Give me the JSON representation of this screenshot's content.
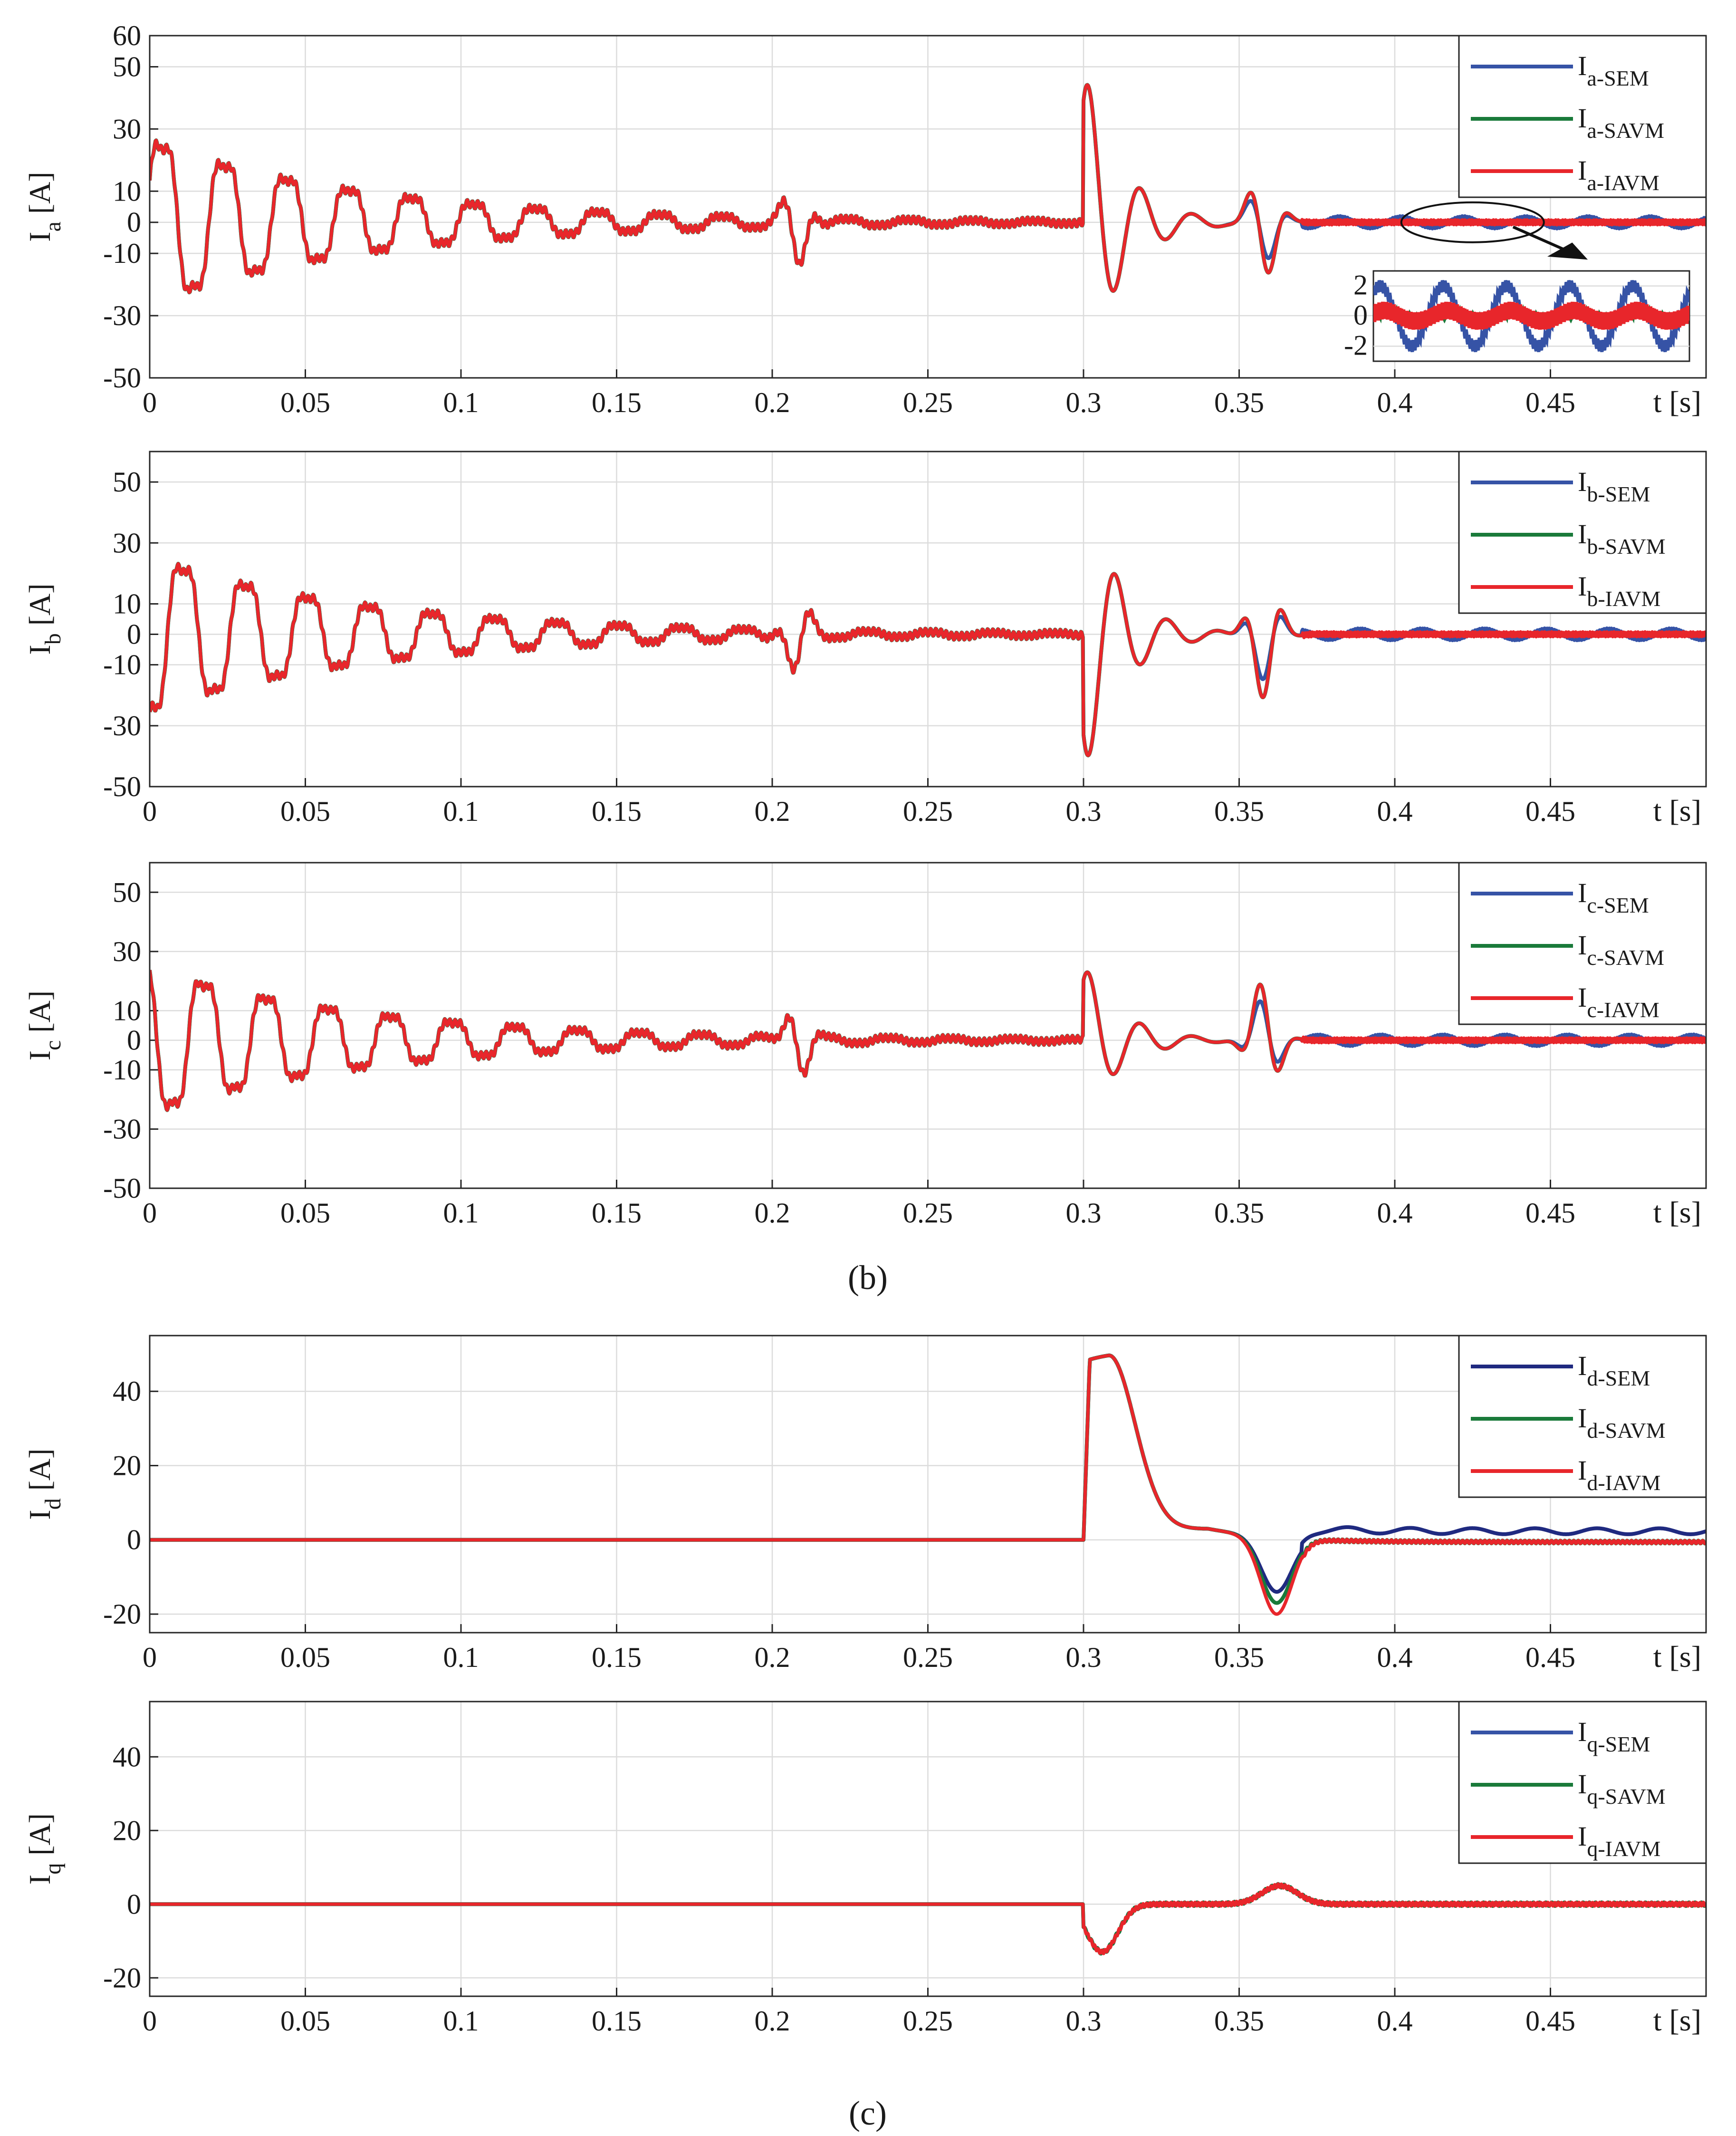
{
  "colors": {
    "SEM_phase": "#3653a6",
    "SEM_dq": "#1f2a80",
    "SAVM": "#1a7a3a",
    "IAVM": "#e8262b"
  },
  "captions": {
    "b": "(b)",
    "c": "(c)"
  },
  "chart_data": [
    {
      "id": "ia",
      "type": "line",
      "ylabel_main": "I",
      "ylabel_sub": "a",
      "ylabel_unit": " [A]",
      "xlabel": "t [s]",
      "xlim": [
        0,
        0.5
      ],
      "ylim": [
        -50,
        60
      ],
      "xticks": [
        0,
        0.05,
        0.1,
        0.15,
        0.2,
        0.25,
        0.3,
        0.35,
        0.4,
        0.45
      ],
      "xticklabels": [
        "0",
        "0.05",
        "0.1",
        "0.15",
        "0.2",
        "0.25",
        "0.3",
        "0.35",
        "0.4",
        "0.45"
      ],
      "yticks": [
        -50,
        -30,
        -10,
        0,
        10,
        30,
        50,
        60
      ],
      "yticklabels": [
        "-50",
        "-30",
        "-10",
        "0",
        "10",
        "30",
        "50",
        "60"
      ],
      "legend_position": "top-right",
      "grid": true,
      "series": [
        {
          "main": "I",
          "sub": "a-SEM",
          "color": "#3653a6"
        },
        {
          "main": "I",
          "sub": "a-SAVM",
          "color": "#1a7a3a"
        },
        {
          "main": "I",
          "sub": "a-IAVM",
          "color": "#e8262b"
        }
      ],
      "inset": {
        "xlim": [
          0.4,
          0.5
        ],
        "ylim": [
          -3,
          3
        ],
        "yticks": [
          -2,
          0,
          2
        ],
        "yticklabels": [
          "-2",
          "0",
          "2"
        ]
      }
    },
    {
      "id": "ib",
      "type": "line",
      "ylabel_main": "I",
      "ylabel_sub": "b",
      "ylabel_unit": " [A]",
      "xlabel": "t [s]",
      "xlim": [
        0,
        0.5
      ],
      "ylim": [
        -50,
        60
      ],
      "xticks": [
        0,
        0.05,
        0.1,
        0.15,
        0.2,
        0.25,
        0.3,
        0.35,
        0.4,
        0.45
      ],
      "xticklabels": [
        "0",
        "0.05",
        "0.1",
        "0.15",
        "0.2",
        "0.25",
        "0.3",
        "0.35",
        "0.4",
        "0.45"
      ],
      "yticks": [
        -50,
        -30,
        -10,
        0,
        10,
        30,
        50
      ],
      "yticklabels": [
        "-50",
        "-30",
        "-10",
        "0",
        "10",
        "30",
        "50"
      ],
      "legend_position": "top-right",
      "grid": true,
      "series": [
        {
          "main": "I",
          "sub": "b-SEM",
          "color": "#3653a6"
        },
        {
          "main": "I",
          "sub": "b-SAVM",
          "color": "#1a7a3a"
        },
        {
          "main": "I",
          "sub": "b-IAVM",
          "color": "#e8262b"
        }
      ]
    },
    {
      "id": "ic",
      "type": "line",
      "ylabel_main": "I",
      "ylabel_sub": "c",
      "ylabel_unit": " [A]",
      "xlabel": "t [s]",
      "xlim": [
        0,
        0.5
      ],
      "ylim": [
        -50,
        60
      ],
      "xticks": [
        0,
        0.05,
        0.1,
        0.15,
        0.2,
        0.25,
        0.3,
        0.35,
        0.4,
        0.45
      ],
      "xticklabels": [
        "0",
        "0.05",
        "0.1",
        "0.15",
        "0.2",
        "0.25",
        "0.3",
        "0.35",
        "0.4",
        "0.45"
      ],
      "yticks": [
        -50,
        -30,
        -10,
        0,
        10,
        30,
        50
      ],
      "yticklabels": [
        "-50",
        "-30",
        "-10",
        "0",
        "10",
        "30",
        "50"
      ],
      "legend_position": "top-right",
      "grid": true,
      "series": [
        {
          "main": "I",
          "sub": "c-SEM",
          "color": "#3653a6"
        },
        {
          "main": "I",
          "sub": "c-SAVM",
          "color": "#1a7a3a"
        },
        {
          "main": "I",
          "sub": "c-IAVM",
          "color": "#e8262b"
        }
      ]
    },
    {
      "id": "id",
      "type": "line",
      "ylabel_main": "I",
      "ylabel_sub": "d",
      "ylabel_unit": " [A]",
      "xlabel": "t [s]",
      "xlim": [
        0,
        0.5
      ],
      "ylim": [
        -25,
        55
      ],
      "xticks": [
        0,
        0.05,
        0.1,
        0.15,
        0.2,
        0.25,
        0.3,
        0.35,
        0.4,
        0.45
      ],
      "xticklabels": [
        "0",
        "0.05",
        "0.1",
        "0.15",
        "0.2",
        "0.25",
        "0.3",
        "0.35",
        "0.4",
        "0.45"
      ],
      "yticks": [
        -20,
        0,
        20,
        40
      ],
      "yticklabels": [
        "-20",
        "0",
        "20",
        "40"
      ],
      "legend_position": "top-right",
      "grid": true,
      "series": [
        {
          "main": "I",
          "sub": "d-SEM",
          "color": "#1f2a80"
        },
        {
          "main": "I",
          "sub": "d-SAVM",
          "color": "#1a7a3a"
        },
        {
          "main": "I",
          "sub": "d-IAVM",
          "color": "#e8262b"
        }
      ]
    },
    {
      "id": "iq",
      "type": "line",
      "ylabel_main": "I",
      "ylabel_sub": "q",
      "ylabel_unit": " [A]",
      "xlabel": "t [s]",
      "xlim": [
        0,
        0.5
      ],
      "ylim": [
        -25,
        55
      ],
      "xticks": [
        0,
        0.05,
        0.1,
        0.15,
        0.2,
        0.25,
        0.3,
        0.35,
        0.4,
        0.45
      ],
      "xticklabels": [
        "0",
        "0.05",
        "0.1",
        "0.15",
        "0.2",
        "0.25",
        "0.3",
        "0.35",
        "0.4",
        "0.45"
      ],
      "yticks": [
        -20,
        0,
        20,
        40
      ],
      "yticklabels": [
        "-20",
        "0",
        "20",
        "40"
      ],
      "legend_position": "top-right",
      "grid": true,
      "series": [
        {
          "main": "I",
          "sub": "q-SEM",
          "color": "#3653a6"
        },
        {
          "main": "I",
          "sub": "q-SAVM",
          "color": "#1a7a3a"
        },
        {
          "main": "I",
          "sub": "q-IAVM",
          "color": "#e8262b"
        }
      ]
    }
  ]
}
